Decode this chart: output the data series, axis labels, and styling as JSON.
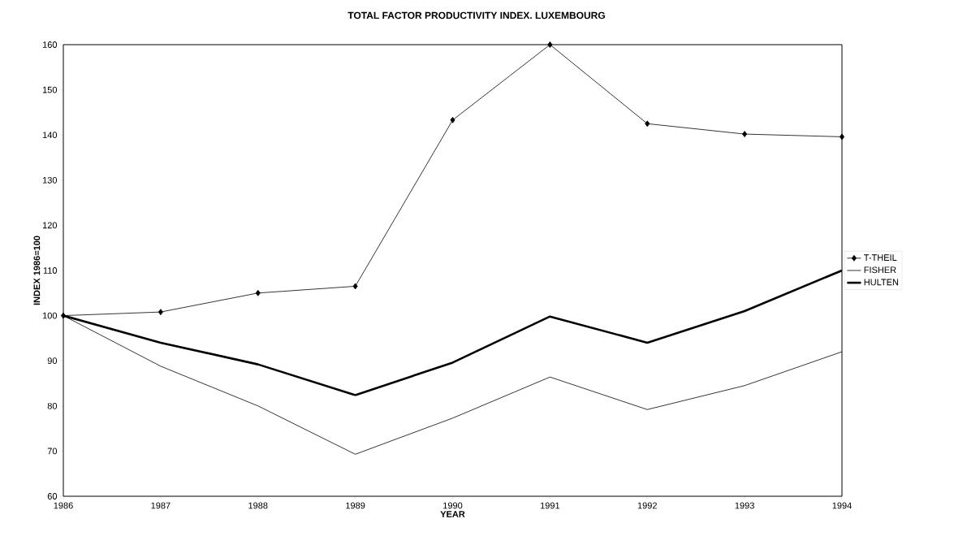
{
  "chart_data": {
    "type": "line",
    "title": "TOTAL FACTOR PRODUCTIVITY INDEX. LUXEMBOURG",
    "xlabel": "YEAR",
    "ylabel": "INDEX 1986=100",
    "x": [
      1986,
      1987,
      1988,
      1989,
      1990,
      1991,
      1992,
      1993,
      1994
    ],
    "xlim": [
      1986,
      1994
    ],
    "xticks": [
      1986,
      1987,
      1988,
      1989,
      1990,
      1991,
      1992,
      1993,
      1994
    ],
    "ylim": [
      60,
      160
    ],
    "yticks": [
      60,
      70,
      80,
      90,
      100,
      110,
      120,
      130,
      140,
      150,
      160
    ],
    "grid": false,
    "legend": "right",
    "series": [
      {
        "name": "T-THEIL",
        "color": "#000000",
        "marker": "diamond",
        "values": [
          100,
          100.8,
          105,
          106.5,
          143.3,
          160,
          142.5,
          140.2,
          139.6
        ]
      },
      {
        "name": "FISHER",
        "color": "#000000",
        "marker": "none",
        "values": [
          100,
          88.8,
          80,
          69.3,
          77.3,
          86.4,
          79.2,
          84.5,
          92
        ]
      },
      {
        "name": "HULTEN",
        "color": "#000000",
        "marker": "none",
        "values": [
          100,
          94,
          89.2,
          82.4,
          89.6,
          99.8,
          94,
          101,
          110
        ]
      }
    ]
  }
}
